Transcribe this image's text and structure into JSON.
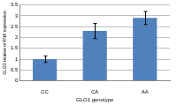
{
  "chart_data": {
    "type": "bar",
    "x_label": "GLO1 genotype",
    "y_label": "GLO1 relative mRNA expression",
    "categories": [
      "CC",
      "CA",
      "AA"
    ],
    "values": [
      1.0,
      2.3,
      2.9
    ],
    "errors": [
      0.15,
      0.35,
      0.3
    ],
    "color": "#4f81bd",
    "ylim": [
      0,
      3.5
    ],
    "yticks": [
      0,
      0.5,
      1,
      1.5,
      2,
      2.5,
      3,
      3.5
    ],
    "grid": true
  }
}
